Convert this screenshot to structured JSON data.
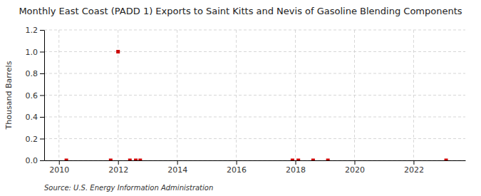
{
  "chart_data": {
    "type": "scatter",
    "title": "Monthly East Coast (PADD 1) Exports to Saint Kitts and Nevis of Gasoline Blending Components",
    "ylabel": "Thousand Barrels",
    "source": "Source: U.S. Energy Information Administration",
    "x": [
      2010.25,
      2011.75,
      2012.0,
      2012.4,
      2012.6,
      2012.75,
      2017.9,
      2018.1,
      2018.6,
      2019.1,
      2023.1
    ],
    "values": [
      0.0,
      0.0,
      1.0,
      0.0,
      0.0,
      0.0,
      0.0,
      0.0,
      0.0,
      0.0,
      0.0
    ],
    "color": "#cc0000",
    "marker": "square",
    "xlim": [
      2009.5,
      2023.75
    ],
    "ylim": [
      0.0,
      1.2
    ],
    "xticks": [
      2010,
      2012,
      2014,
      2016,
      2018,
      2020,
      2022
    ],
    "yticks": [
      {
        "value": 0.0,
        "label": "0.0"
      },
      0.2,
      0.4,
      0.6,
      0.8,
      {
        "value": 1.0,
        "label": "1.0"
      },
      1.2
    ],
    "grid": true
  }
}
